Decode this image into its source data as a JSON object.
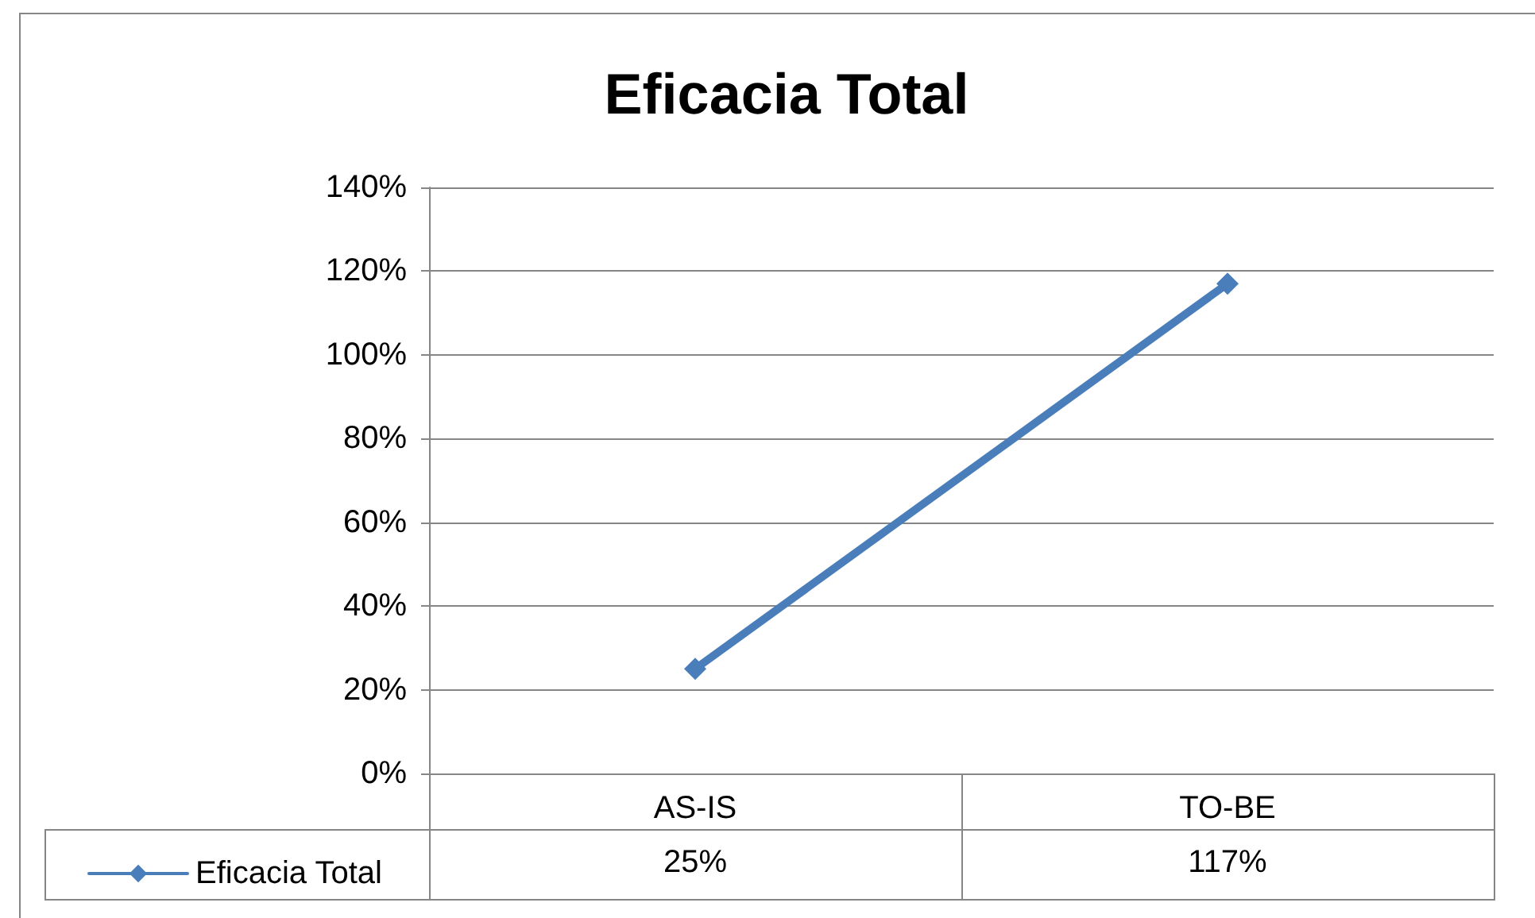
{
  "chart_data": {
    "type": "line",
    "title": "Eficacia Total",
    "categories": [
      "AS-IS",
      "TO-BE"
    ],
    "series": [
      {
        "name": "Eficacia Total",
        "color": "#4a7ebb",
        "values": [
          25,
          117
        ],
        "value_labels": [
          "25%",
          "117%"
        ]
      }
    ],
    "ylim": [
      0,
      140
    ],
    "yticks": [
      {
        "value": 0,
        "label": "0%"
      },
      {
        "value": 20,
        "label": "20%"
      },
      {
        "value": 40,
        "label": "40%"
      },
      {
        "value": 60,
        "label": "60%"
      },
      {
        "value": 80,
        "label": "80%"
      },
      {
        "value": 100,
        "label": "100%"
      },
      {
        "value": 120,
        "label": "120%"
      },
      {
        "value": 140,
        "label": "140%"
      }
    ],
    "grid": "y",
    "legend": "bottom left",
    "marker": "diamond",
    "line_style": "solid"
  }
}
